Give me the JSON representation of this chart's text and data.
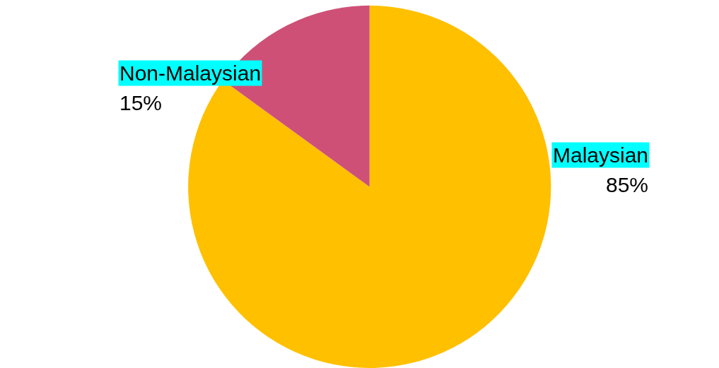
{
  "chart_data": {
    "type": "pie",
    "categories": [
      "Malaysian",
      "Non-Malaysian"
    ],
    "values": [
      85,
      15
    ],
    "colors": [
      "#ffc000",
      "#cf5077"
    ],
    "value_labels": [
      "85%",
      "15%"
    ],
    "legend": false
  }
}
